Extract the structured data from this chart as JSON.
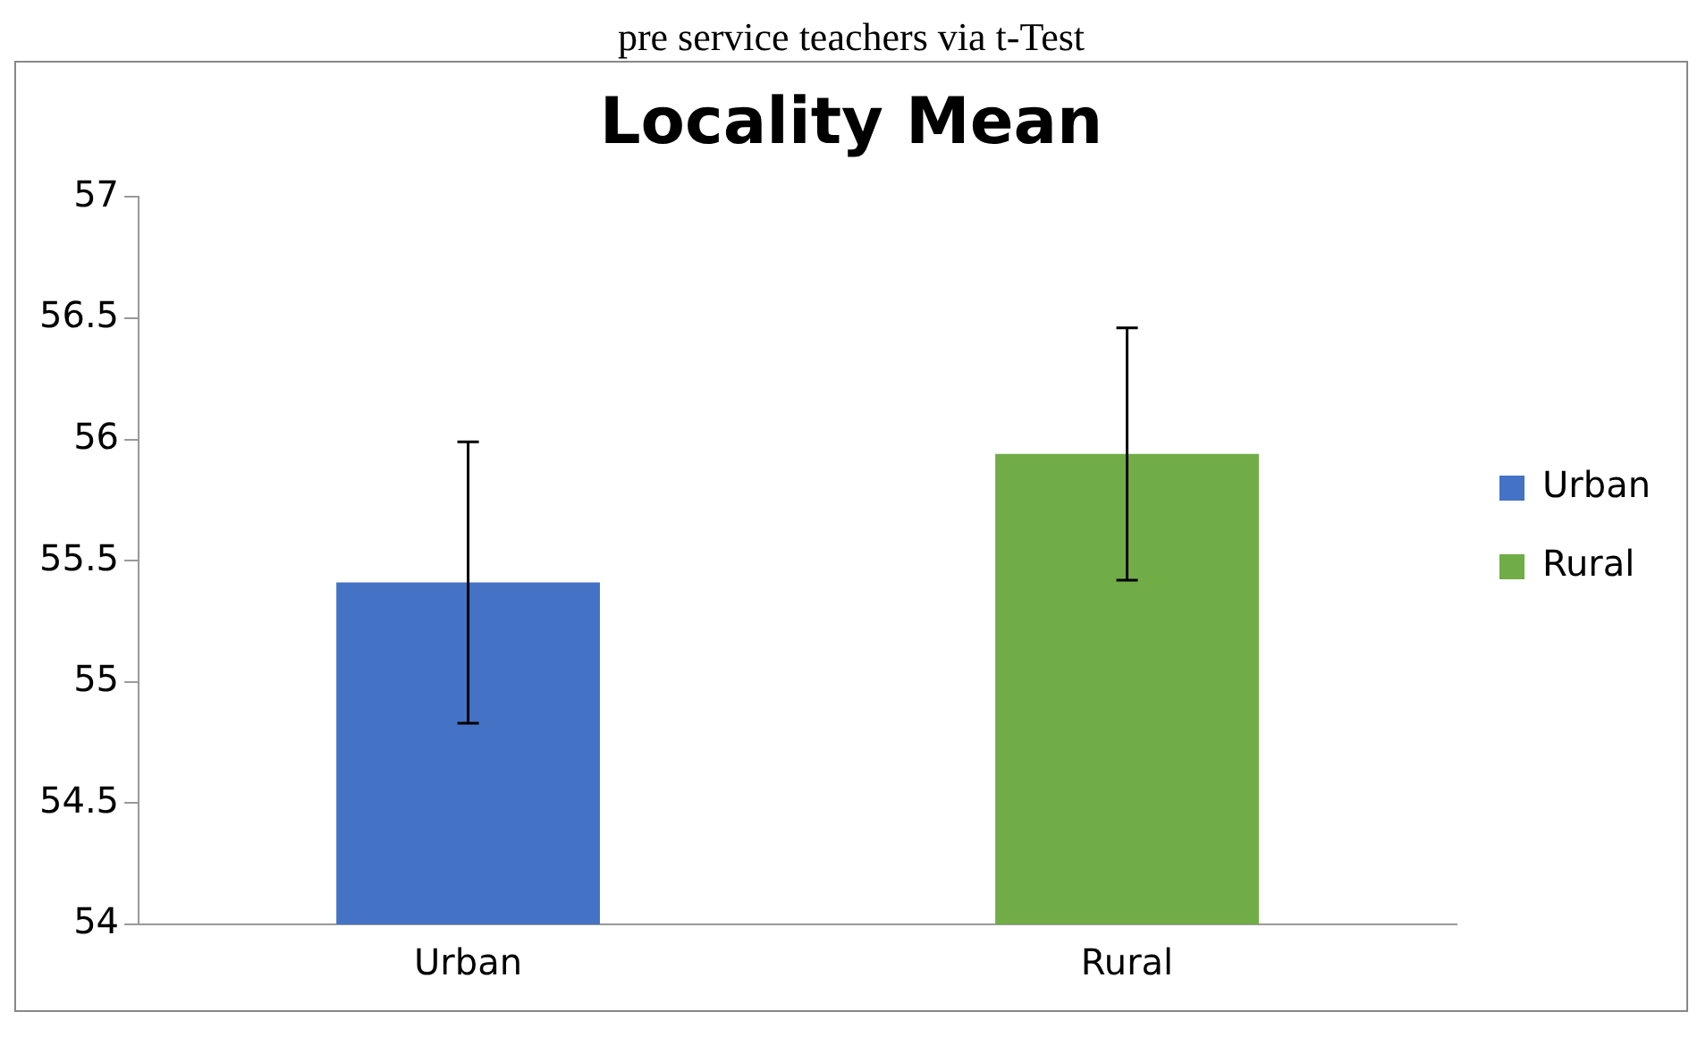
{
  "chart_data": {
    "type": "bar",
    "title": "Locality Mean",
    "annotations": [
      "pre service teachers via t-Test"
    ],
    "categories": [
      "Urban",
      "Rural"
    ],
    "series": [
      {
        "name": "Urban",
        "color": "#4472c4",
        "values": [
          55.41,
          null
        ],
        "errors": [
          0.58,
          null
        ]
      },
      {
        "name": "Rural",
        "color": "#70ad47",
        "values": [
          null,
          55.94
        ],
        "errors": [
          null,
          0.52
        ]
      }
    ],
    "ylim": [
      54,
      57
    ],
    "yticks": [
      54,
      54.5,
      55,
      55.5,
      56,
      56.5,
      57
    ],
    "grid": false,
    "legend": "right"
  }
}
